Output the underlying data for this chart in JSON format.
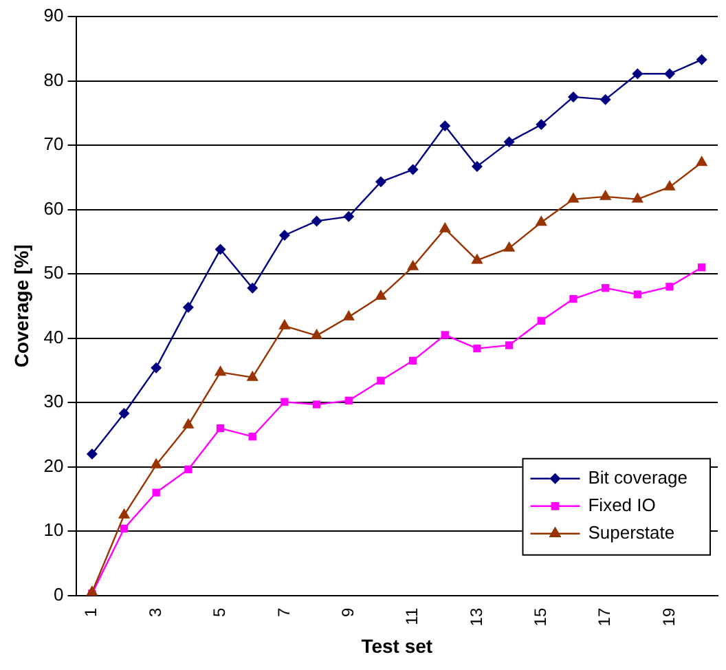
{
  "chart_data": {
    "type": "line",
    "xlabel": "Test set",
    "ylabel": "Coverage [%]",
    "categories": [
      "1",
      null,
      "3",
      null,
      "5",
      null,
      "7",
      null,
      "9",
      null,
      "11",
      null,
      "13",
      null,
      "15",
      null,
      "17",
      null,
      "19",
      null
    ],
    "series": [
      {
        "name": "Bit coverage",
        "color": "#000080",
        "marker": "diamond",
        "values": [
          22,
          28.3,
          35.4,
          44.8,
          53.8,
          47.8,
          56,
          58.2,
          58.9,
          64.3,
          66.2,
          73,
          66.7,
          70.5,
          73.2,
          77.5,
          77.1,
          81.1,
          81.1,
          83.3
        ]
      },
      {
        "name": "Fixed IO",
        "color": "#ff00ff",
        "marker": "square",
        "values": [
          0.3,
          10.4,
          16,
          19.6,
          26,
          24.7,
          30.1,
          29.7,
          30.3,
          33.4,
          36.5,
          40.5,
          38.4,
          38.9,
          42.7,
          46.1,
          47.8,
          46.8,
          48,
          51
        ]
      },
      {
        "name": "Superstate",
        "color": "#993300",
        "marker": "triangle",
        "values": [
          0.5,
          12.5,
          20.3,
          26.5,
          34.7,
          33.9,
          41.9,
          40.4,
          43.3,
          46.5,
          51.1,
          57,
          52.1,
          54,
          58,
          61.6,
          62,
          61.6,
          63.5,
          67.3
        ]
      }
    ],
    "ylim": [
      0,
      90
    ],
    "yticks": [
      0,
      10,
      20,
      30,
      40,
      50,
      60,
      70,
      80,
      90
    ],
    "grid": "y",
    "legend": "bottom right",
    "line_style": "solid"
  }
}
